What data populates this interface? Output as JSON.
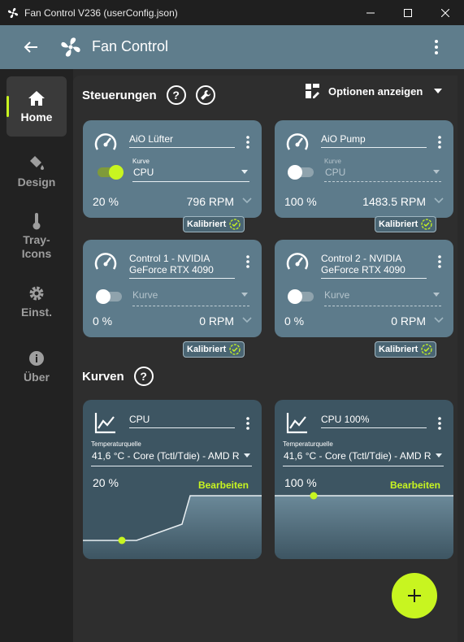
{
  "window": {
    "title": "Fan Control V236 (userConfig.json)"
  },
  "appbar": {
    "title": "Fan Control"
  },
  "sidebar": {
    "items": [
      {
        "label": "Home",
        "icon": "home-icon",
        "active": true
      },
      {
        "label": "Design",
        "icon": "paint-bucket-icon",
        "active": false
      },
      {
        "label": "Tray-\nIcons",
        "icon": "thermometer-icon",
        "active": false
      },
      {
        "label": "Einst.",
        "icon": "gear-icon",
        "active": false
      },
      {
        "label": "Über",
        "icon": "info-icon",
        "active": false
      }
    ]
  },
  "controls": {
    "heading": "Steuerungen",
    "options_label": "Optionen anzeigen",
    "cards": [
      {
        "name": "AiO Lüfter",
        "curve_label": "Kurve",
        "curve": "CPU",
        "enabled": true,
        "percent": "20 %",
        "rpm": "796 RPM",
        "badge": "Kalibriert"
      },
      {
        "name": "AiO Pump",
        "curve_label": "Kurve",
        "curve": "CPU",
        "enabled": false,
        "percent": "100 %",
        "rpm": "1483.5 RPM",
        "badge": "Kalibriert"
      },
      {
        "name": "Control 1 - NVIDIA GeForce RTX 4090",
        "curve_placeholder": "Kurve",
        "enabled": false,
        "percent": "0 %",
        "rpm": "0 RPM",
        "badge": "Kalibriert"
      },
      {
        "name": "Control 2 - NVIDIA GeForce RTX 4090",
        "curve_placeholder": "Kurve",
        "enabled": false,
        "percent": "0 %",
        "rpm": "0 RPM",
        "badge": "Kalibriert"
      }
    ]
  },
  "curves": {
    "heading": "Kurven",
    "cards": [
      {
        "name": "CPU",
        "source_label": "Temperaturquelle",
        "source": "41,6 °C - Core (Tctl/Tdie) - AMD R",
        "percent": "20 %",
        "edit_label": "Bearbeiten"
      },
      {
        "name": "CPU 100%",
        "source_label": "Temperaturquelle",
        "source": "41,6 °C - Core (Tctl/Tdie) - AMD R",
        "percent": "100 %",
        "edit_label": "Bearbeiten"
      }
    ]
  },
  "colors": {
    "accent": "#c8f520",
    "card": "#5d7b8b",
    "appbar": "#5f7d8c"
  }
}
